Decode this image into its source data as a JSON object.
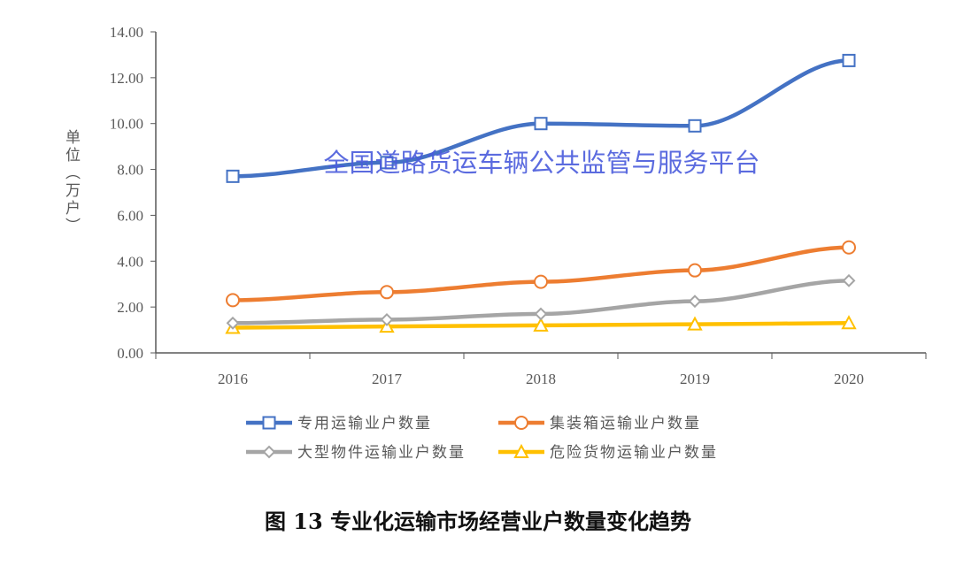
{
  "chart_data": {
    "type": "line",
    "categories": [
      "2016",
      "2017",
      "2018",
      "2019",
      "2020"
    ],
    "ylabel": "单位（万户）",
    "ylim": [
      0,
      14
    ],
    "yticks": [
      "0.00",
      "2.00",
      "4.00",
      "6.00",
      "8.00",
      "10.00",
      "12.00",
      "14.00"
    ],
    "grid": false,
    "legend": "bottom",
    "series": [
      {
        "name": "专用运输业户数量",
        "color": "#4472c4",
        "marker": "square",
        "values": [
          7.7,
          8.3,
          10.0,
          9.9,
          12.75
        ]
      },
      {
        "name": "集装箱运输业户数量",
        "color": "#ed7d31",
        "marker": "circle",
        "values": [
          2.3,
          2.65,
          3.1,
          3.6,
          4.6
        ]
      },
      {
        "name": "大型物件运输业户数量",
        "color": "#a5a5a5",
        "marker": "diamond",
        "values": [
          1.3,
          1.45,
          1.7,
          2.25,
          3.15
        ]
      },
      {
        "name": "危险货物运输业户数量",
        "color": "#ffc000",
        "marker": "triangle",
        "values": [
          1.1,
          1.15,
          1.2,
          1.25,
          1.3
        ]
      }
    ],
    "watermark": "全国道路货运车辆公共监管与服务平台",
    "caption": "图 13 专业化运输市场经营业户数量变化趋势"
  }
}
